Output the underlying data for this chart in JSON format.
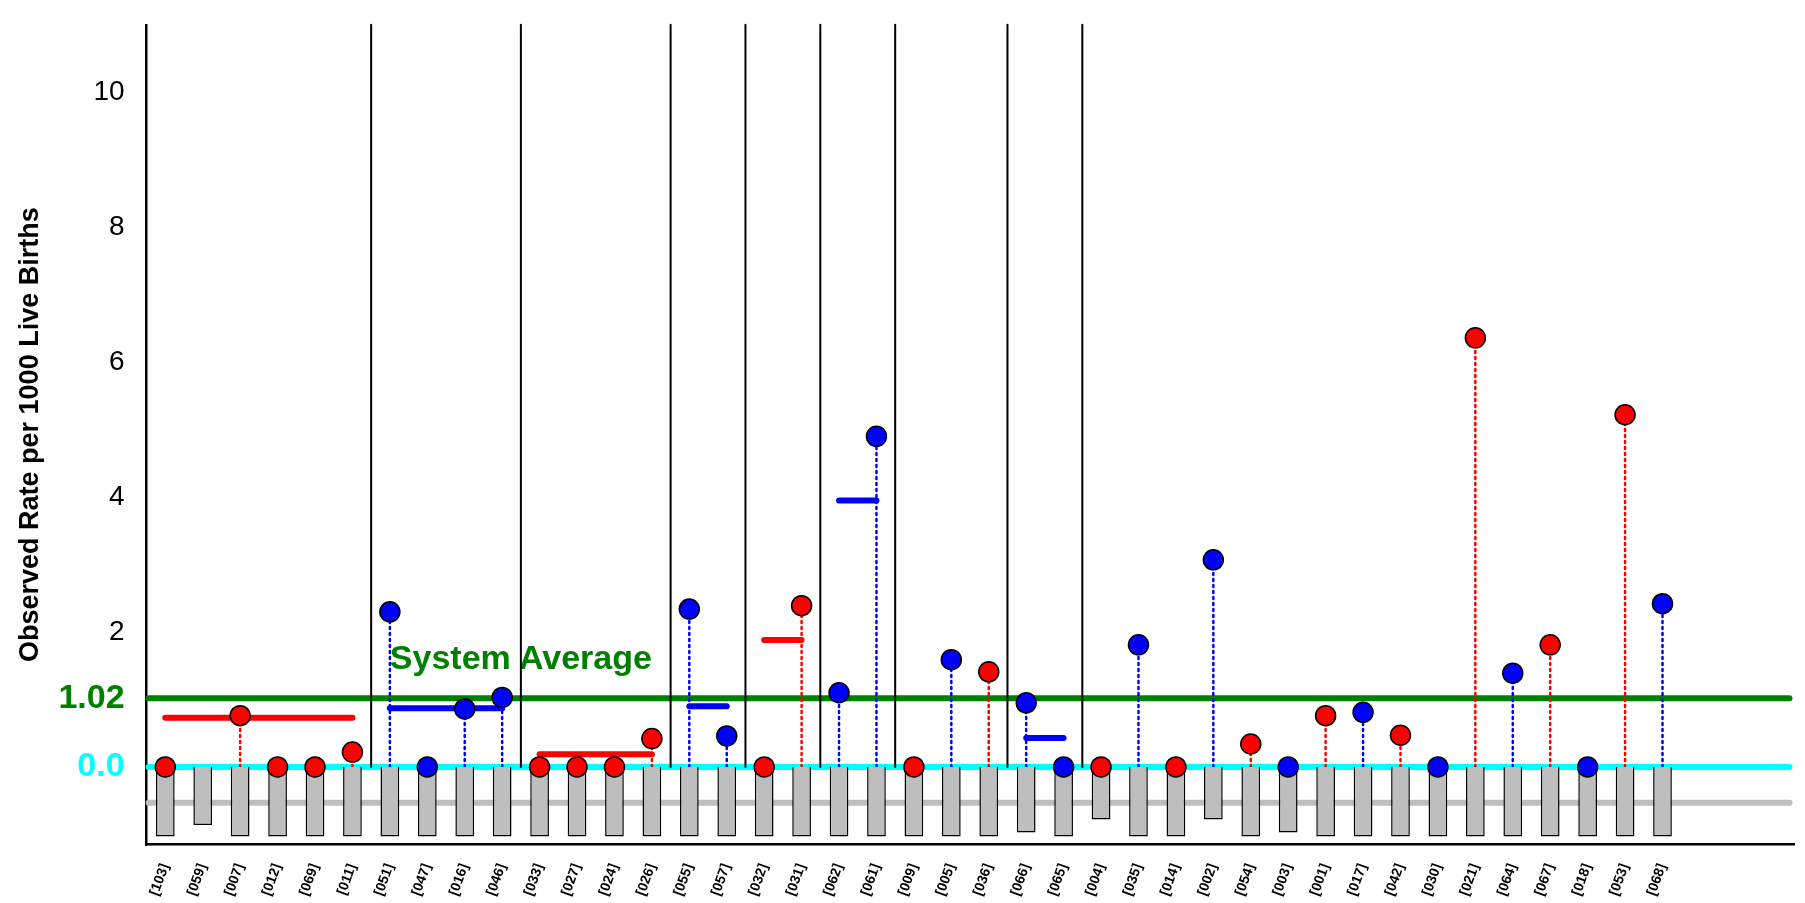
{
  "chart_data": {
    "type": "lollipop",
    "ylabel": "Observed Rate per 1000 Live Births",
    "categories": [
      "[103]",
      "[059]",
      "[007]",
      "[012]",
      "[069]",
      "[011]",
      "[051]",
      "[047]",
      "[016]",
      "[046]",
      "[033]",
      "[027]",
      "[024]",
      "[026]",
      "[055]",
      "[057]",
      "[032]",
      "[031]",
      "[062]",
      "[061]",
      "[009]",
      "[005]",
      "[036]",
      "[066]",
      "[065]",
      "[004]",
      "[035]",
      "[014]",
      "[002]",
      "[054]",
      "[003]",
      "[001]",
      "[017]",
      "[042]",
      "[030]",
      "[021]",
      "[064]",
      "[067]",
      "[018]",
      "[053]",
      "[068]",
      null,
      null,
      null
    ],
    "series": [
      {
        "type": "bar",
        "color": "#bebebe",
        "values": [
          -1.03,
          -0.86,
          -1.03,
          -1.03,
          -1.03,
          -1.03,
          -1.03,
          -1.03,
          -1.03,
          -1.03,
          -1.03,
          -1.03,
          -1.03,
          -1.03,
          -1.03,
          -1.03,
          -1.03,
          -1.03,
          -1.03,
          -1.03,
          -1.03,
          -1.03,
          -1.03,
          -0.97,
          -1.03,
          -0.78,
          -1.03,
          -1.03,
          -0.78,
          -1.03,
          -0.97,
          -1.03,
          -1.03,
          -1.03,
          -1.03,
          -1.03,
          -1.03,
          -1.03,
          -1.03,
          -1.03,
          -1.03,
          null,
          null,
          null
        ]
      },
      {
        "type": "line",
        "color": "#ff0000",
        "values": [
          0.73,
          0.73,
          0.73,
          0.73,
          0.73,
          0.73,
          null,
          null,
          null,
          null,
          null,
          null,
          null,
          null,
          null,
          null,
          null,
          null,
          null,
          null,
          null,
          null,
          null,
          null,
          null,
          null,
          null,
          null,
          null,
          null,
          null,
          null,
          null,
          null,
          null,
          null,
          null,
          null,
          null,
          null,
          null,
          null,
          null,
          null
        ]
      },
      {
        "type": "line",
        "color": "#0000ff",
        "values": [
          null,
          null,
          null,
          null,
          null,
          null,
          0.87,
          0.87,
          0.87,
          0.87,
          null,
          null,
          null,
          null,
          null,
          null,
          null,
          null,
          null,
          null,
          null,
          null,
          null,
          null,
          null,
          null,
          null,
          null,
          null,
          null,
          null,
          null,
          null,
          null,
          null,
          null,
          null,
          null,
          null,
          null,
          null,
          null,
          null,
          null
        ]
      },
      {
        "type": "line",
        "color": "#ff0000",
        "values": [
          null,
          null,
          null,
          null,
          null,
          null,
          null,
          null,
          null,
          null,
          0.19,
          0.19,
          0.19,
          0.19,
          null,
          null,
          null,
          null,
          null,
          null,
          null,
          null,
          null,
          null,
          null,
          null,
          null,
          null,
          null,
          null,
          null,
          null,
          null,
          null,
          null,
          null,
          null,
          null,
          null,
          null,
          null,
          null,
          null,
          null
        ]
      },
      {
        "type": "line",
        "color": "#0000ff",
        "values": [
          null,
          null,
          null,
          null,
          null,
          null,
          null,
          null,
          null,
          null,
          null,
          null,
          null,
          null,
          0.9,
          0.9,
          null,
          null,
          null,
          null,
          null,
          null,
          null,
          null,
          null,
          null,
          null,
          null,
          null,
          null,
          null,
          null,
          null,
          null,
          null,
          null,
          null,
          null,
          null,
          null,
          null,
          null,
          null,
          null
        ]
      },
      {
        "type": "line",
        "color": "#ff0000",
        "values": [
          null,
          null,
          null,
          null,
          null,
          null,
          null,
          null,
          null,
          null,
          null,
          null,
          null,
          null,
          null,
          null,
          1.88,
          1.88,
          null,
          null,
          null,
          null,
          null,
          null,
          null,
          null,
          null,
          null,
          null,
          null,
          null,
          null,
          null,
          null,
          null,
          null,
          null,
          null,
          null,
          null,
          null,
          null,
          null,
          null
        ]
      },
      {
        "type": "line",
        "color": "#0000ff",
        "values": [
          null,
          null,
          null,
          null,
          null,
          null,
          null,
          null,
          null,
          null,
          null,
          null,
          null,
          null,
          null,
          null,
          null,
          null,
          3.95,
          3.95,
          null,
          null,
          null,
          null,
          null,
          null,
          null,
          null,
          null,
          null,
          null,
          null,
          null,
          null,
          null,
          null,
          null,
          null,
          null,
          null,
          null,
          null,
          null,
          null
        ]
      },
      {
        "type": "line",
        "color": "#0000ff",
        "values": [
          null,
          null,
          null,
          null,
          null,
          null,
          null,
          null,
          null,
          null,
          null,
          null,
          null,
          null,
          null,
          null,
          null,
          null,
          null,
          null,
          null,
          null,
          null,
          0.43,
          0.43,
          null,
          null,
          null,
          null,
          null,
          null,
          null,
          null,
          null,
          null,
          null,
          null,
          null,
          null,
          null,
          null,
          null,
          null,
          null
        ]
      },
      {
        "marker": "circle",
        "line_style": "dotted",
        "values": [
          0,
          null,
          0.76,
          0,
          0,
          0.22,
          2.3,
          0,
          0.86,
          1.03,
          0,
          0,
          0,
          0.42,
          2.34,
          0.46,
          0,
          2.39,
          1.1,
          4.9,
          0,
          1.59,
          1.41,
          0.95,
          0,
          0,
          1.81,
          0,
          3.07,
          0.34,
          0,
          0.76,
          0.81,
          0.47,
          0,
          6.36,
          1.39,
          1.81,
          0,
          5.22,
          2.42,
          null,
          null,
          null
        ],
        "colors": [
          "#ff0000",
          "#ff0000",
          "#ff0000",
          "#ff0000",
          "#ff0000",
          "#ff0000",
          "#0000ff",
          "#0000ff",
          "#0000ff",
          "#0000ff",
          "#ff0000",
          "#ff0000",
          "#ff0000",
          "#ff0000",
          "#0000ff",
          "#0000ff",
          "#ff0000",
          "#ff0000",
          "#0000ff",
          "#0000ff",
          "#ff0000",
          "#0000ff",
          "#ff0000",
          "#0000ff",
          "#0000ff",
          "#ff0000",
          "#0000ff",
          "#ff0000",
          "#0000ff",
          "#ff0000",
          "#0000ff",
          "#ff0000",
          "#0000ff",
          "#ff0000",
          "#0000ff",
          "#ff0000",
          "#0000ff",
          "#ff0000",
          "#0000ff",
          "#ff0000",
          "#0000ff",
          "#000000",
          "#000000",
          "#000000"
        ]
      }
    ],
    "ylim": [
      -1.15,
      11
    ],
    "yticks": [
      {
        "value": 0,
        "label": "0.0"
      },
      {
        "value": 1.02,
        "label": "1.02"
      },
      2,
      4,
      6,
      8,
      10
    ],
    "ref_lines": [
      {
        "axis": "y",
        "value": -0.53,
        "color": "#bebebe"
      },
      {
        "axis": "y",
        "value": 1.02,
        "label": "System Average",
        "color": "#008000"
      },
      {
        "axis": "y",
        "value": 0,
        "color": "#00ffff"
      },
      {
        "axis": "x",
        "value": "[051]",
        "color": "#000000"
      },
      {
        "axis": "x",
        "value": "[033]",
        "color": "#000000"
      },
      {
        "axis": "x",
        "value": "[055]",
        "color": "#000000"
      },
      {
        "axis": "x",
        "value": "[032]",
        "color": "#000000"
      },
      {
        "axis": "x",
        "value": "[062]",
        "color": "#000000"
      },
      {
        "axis": "x",
        "value": "[009]",
        "color": "#000000"
      },
      {
        "axis": "x",
        "value": "[066]",
        "color": "#000000"
      },
      {
        "axis": "x",
        "value": "[004]",
        "color": "#000000"
      }
    ]
  }
}
